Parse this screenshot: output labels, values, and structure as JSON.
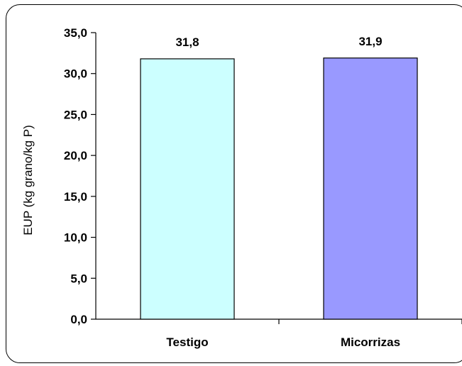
{
  "chart_data": {
    "type": "bar",
    "categories": [
      "Testigo",
      "Micorrizas"
    ],
    "values": [
      31.8,
      31.9
    ],
    "data_labels": [
      "31,8",
      "31,9"
    ],
    "colors": [
      "#CCFFFF",
      "#9999FF"
    ],
    "ylabel": "EUP (kg grano/kg P)",
    "ylim": [
      0,
      35
    ],
    "yticks": [
      0,
      5,
      10,
      15,
      20,
      25,
      30,
      35
    ],
    "ytick_labels": [
      "0,0",
      "5,0",
      "10,0",
      "15,0",
      "20,0",
      "25,0",
      "30,0",
      "35,0"
    ],
    "grid": false,
    "legend": "none"
  }
}
